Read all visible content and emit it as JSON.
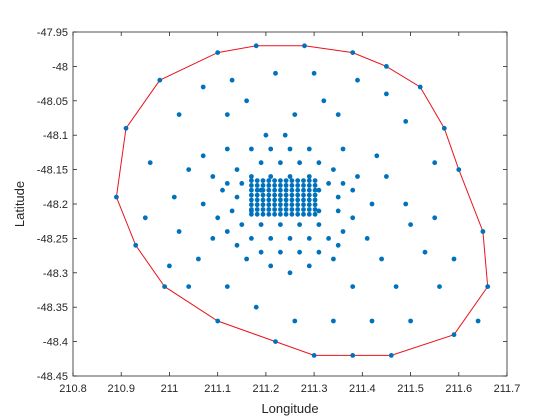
{
  "chart_data": {
    "type": "scatter",
    "xlabel": "Longitude",
    "ylabel": "Latitude",
    "xlim": [
      210.8,
      211.7
    ],
    "ylim": [
      -48.45,
      -47.95
    ],
    "x_ticks": [
      "210.8",
      "210.9",
      "211",
      "211.1",
      "211.2",
      "211.3",
      "211.4",
      "211.5",
      "211.6",
      "211.7"
    ],
    "y_ticks": [
      "-47.95",
      "-48",
      "-48.05",
      "-48.1",
      "-48.15",
      "-48.2",
      "-48.25",
      "-48.3",
      "-48.35",
      "-48.4",
      "-48.45"
    ],
    "grid": false,
    "colors": {
      "points": "#0072BD",
      "hull": "#E8141C",
      "axes": "#262626"
    },
    "series": [
      {
        "kind": "points",
        "points": [
          [
            211.18,
            -47.97
          ],
          [
            211.28,
            -47.97
          ],
          [
            210.98,
            -48.02
          ],
          [
            211.1,
            -47.98
          ],
          [
            211.38,
            -47.98
          ],
          [
            211.45,
            -48.0
          ],
          [
            211.52,
            -48.03
          ],
          [
            211.22,
            -48.01
          ],
          [
            211.3,
            -48.01
          ],
          [
            211.13,
            -48.02
          ],
          [
            211.39,
            -48.02
          ],
          [
            211.07,
            -48.03
          ],
          [
            211.45,
            -48.04
          ],
          [
            211.16,
            -48.05
          ],
          [
            211.32,
            -48.05
          ],
          [
            211.02,
            -48.07
          ],
          [
            211.12,
            -48.07
          ],
          [
            211.26,
            -48.07
          ],
          [
            211.35,
            -48.07
          ],
          [
            211.49,
            -48.08
          ],
          [
            211.2,
            -48.1
          ],
          [
            211.24,
            -48.1
          ],
          [
            211.17,
            -48.12
          ],
          [
            211.21,
            -48.12
          ],
          [
            211.25,
            -48.12
          ],
          [
            211.29,
            -48.12
          ],
          [
            211.12,
            -48.12
          ],
          [
            211.36,
            -48.12
          ],
          [
            211.07,
            -48.13
          ],
          [
            211.43,
            -48.13
          ],
          [
            211.19,
            -48.14
          ],
          [
            211.23,
            -48.14
          ],
          [
            211.27,
            -48.14
          ],
          [
            211.31,
            -48.14
          ],
          [
            211.14,
            -48.15
          ],
          [
            211.34,
            -48.15
          ],
          [
            211.04,
            -48.15
          ],
          [
            211.45,
            -48.16
          ],
          [
            211.17,
            -48.16
          ],
          [
            211.21,
            -48.16
          ],
          [
            211.25,
            -48.16
          ],
          [
            211.29,
            -48.16
          ],
          [
            211.09,
            -48.16
          ],
          [
            211.39,
            -48.16
          ],
          [
            211.12,
            -48.17
          ],
          [
            211.15,
            -48.17
          ],
          [
            211.33,
            -48.17
          ],
          [
            211.36,
            -48.17
          ],
          [
            211.19,
            -48.18
          ],
          [
            211.31,
            -48.18
          ],
          [
            211.14,
            -48.19
          ],
          [
            211.35,
            -48.19
          ],
          [
            211.11,
            -48.18
          ],
          [
            211.38,
            -48.18
          ],
          [
            211.07,
            -48.2
          ],
          [
            211.42,
            -48.2
          ],
          [
            211.01,
            -48.19
          ],
          [
            211.49,
            -48.2
          ],
          [
            211.13,
            -48.21
          ],
          [
            211.17,
            -48.21
          ],
          [
            211.31,
            -48.21
          ],
          [
            211.35,
            -48.21
          ],
          [
            211.1,
            -48.22
          ],
          [
            211.38,
            -48.22
          ],
          [
            211.15,
            -48.23
          ],
          [
            211.19,
            -48.23
          ],
          [
            211.23,
            -48.23
          ],
          [
            211.27,
            -48.23
          ],
          [
            211.31,
            -48.23
          ],
          [
            211.12,
            -48.24
          ],
          [
            211.36,
            -48.24
          ],
          [
            211.02,
            -48.24
          ],
          [
            211.5,
            -48.23
          ],
          [
            211.09,
            -48.25
          ],
          [
            211.41,
            -48.25
          ],
          [
            211.17,
            -48.25
          ],
          [
            211.21,
            -48.25
          ],
          [
            211.25,
            -48.25
          ],
          [
            211.29,
            -48.25
          ],
          [
            211.33,
            -48.25
          ],
          [
            211.14,
            -48.26
          ],
          [
            211.19,
            -48.27
          ],
          [
            211.23,
            -48.27
          ],
          [
            211.27,
            -48.27
          ],
          [
            211.31,
            -48.27
          ],
          [
            211.35,
            -48.26
          ],
          [
            211.06,
            -48.28
          ],
          [
            211.44,
            -48.28
          ],
          [
            211.16,
            -48.28
          ],
          [
            211.34,
            -48.28
          ],
          [
            211.21,
            -48.29
          ],
          [
            211.29,
            -48.29
          ],
          [
            211.25,
            -48.3
          ],
          [
            211.12,
            -48.32
          ],
          [
            211.04,
            -48.32
          ],
          [
            211.38,
            -48.32
          ],
          [
            211.47,
            -48.32
          ],
          [
            211.56,
            -48.32
          ],
          [
            210.96,
            -48.14
          ],
          [
            210.95,
            -48.22
          ],
          [
            211.55,
            -48.14
          ],
          [
            211.55,
            -48.22
          ],
          [
            211.59,
            -48.28
          ],
          [
            211.53,
            -48.27
          ],
          [
            211.0,
            -48.29
          ],
          [
            211.18,
            -48.35
          ],
          [
            211.26,
            -48.37
          ],
          [
            211.34,
            -48.37
          ],
          [
            211.42,
            -48.37
          ],
          [
            211.5,
            -48.37
          ],
          [
            210.89,
            -48.19
          ],
          [
            210.91,
            -48.09
          ],
          [
            211.57,
            -48.09
          ],
          [
            211.6,
            -48.15
          ],
          [
            211.65,
            -48.24
          ],
          [
            211.66,
            -48.32
          ],
          [
            211.64,
            -48.37
          ],
          [
            210.93,
            -48.26
          ],
          [
            210.99,
            -48.32
          ],
          [
            211.1,
            -48.37
          ],
          [
            211.22,
            -48.4
          ],
          [
            211.3,
            -48.42
          ],
          [
            211.38,
            -48.42
          ],
          [
            211.46,
            -48.42
          ],
          [
            211.59,
            -48.39
          ]
        ]
      },
      {
        "kind": "dense-cluster",
        "x_range": [
          211.17,
          211.31
        ],
        "y_range": [
          -48.215,
          -48.16
        ],
        "step": [
          0.012,
          0.007
        ]
      },
      {
        "kind": "hull",
        "points": [
          [
            211.18,
            -47.97
          ],
          [
            211.28,
            -47.97
          ],
          [
            211.38,
            -47.98
          ],
          [
            211.45,
            -48.0
          ],
          [
            211.52,
            -48.03
          ],
          [
            211.57,
            -48.09
          ],
          [
            211.6,
            -48.15
          ],
          [
            211.65,
            -48.24
          ],
          [
            211.66,
            -48.32
          ],
          [
            211.59,
            -48.39
          ],
          [
            211.46,
            -48.42
          ],
          [
            211.38,
            -48.42
          ],
          [
            211.3,
            -48.42
          ],
          [
            211.22,
            -48.4
          ],
          [
            211.1,
            -48.37
          ],
          [
            210.99,
            -48.32
          ],
          [
            210.93,
            -48.26
          ],
          [
            210.89,
            -48.19
          ],
          [
            210.91,
            -48.09
          ],
          [
            210.98,
            -48.02
          ],
          [
            211.1,
            -47.98
          ],
          [
            211.18,
            -47.97
          ]
        ]
      }
    ]
  }
}
